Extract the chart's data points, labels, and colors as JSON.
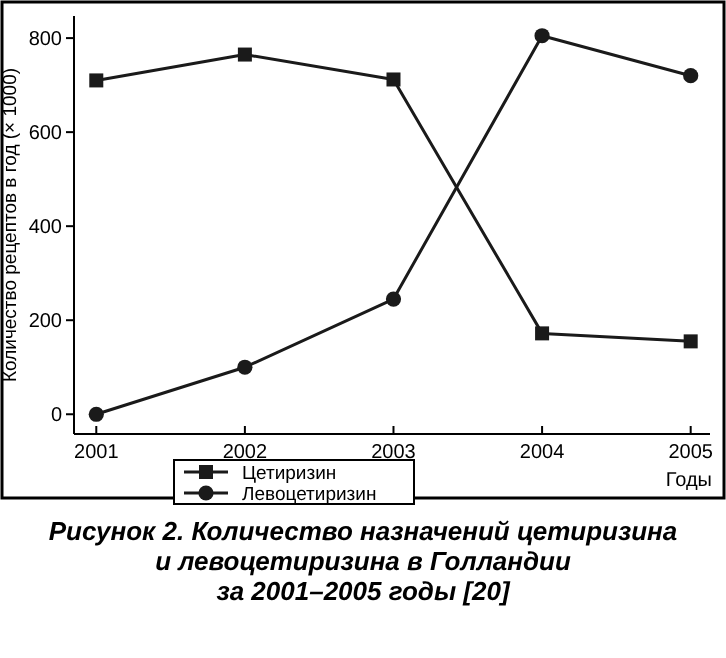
{
  "chart_data": {
    "type": "line",
    "title": "Рисунок 2. Количество назначений цетиризина\nи левоцетиризина в Голландии\nза 2001–2005 годы [20]",
    "xlabel": "Годы",
    "ylabel": "Количество рецептов в год (× 1000)",
    "x": [
      2001,
      2002,
      2003,
      2004,
      2005
    ],
    "series": [
      {
        "name": "Цетиризин",
        "color": "#1a1a1a",
        "marker": "square",
        "values": [
          710,
          765,
          712,
          172,
          155
        ]
      },
      {
        "name": "Левоцетиризин",
        "color": "#1a1a1a",
        "marker": "circle",
        "values": [
          0,
          100,
          245,
          805,
          720
        ]
      }
    ],
    "xlim": [
      2000.85,
      2005.13
    ],
    "xticks": [
      2001,
      2002,
      2003,
      2004,
      2005
    ],
    "ylim": [
      -42,
      847
    ],
    "yticks": [
      0,
      200,
      400,
      600,
      800
    ],
    "grid": false,
    "legend": "bottom",
    "line_style": "solid"
  }
}
